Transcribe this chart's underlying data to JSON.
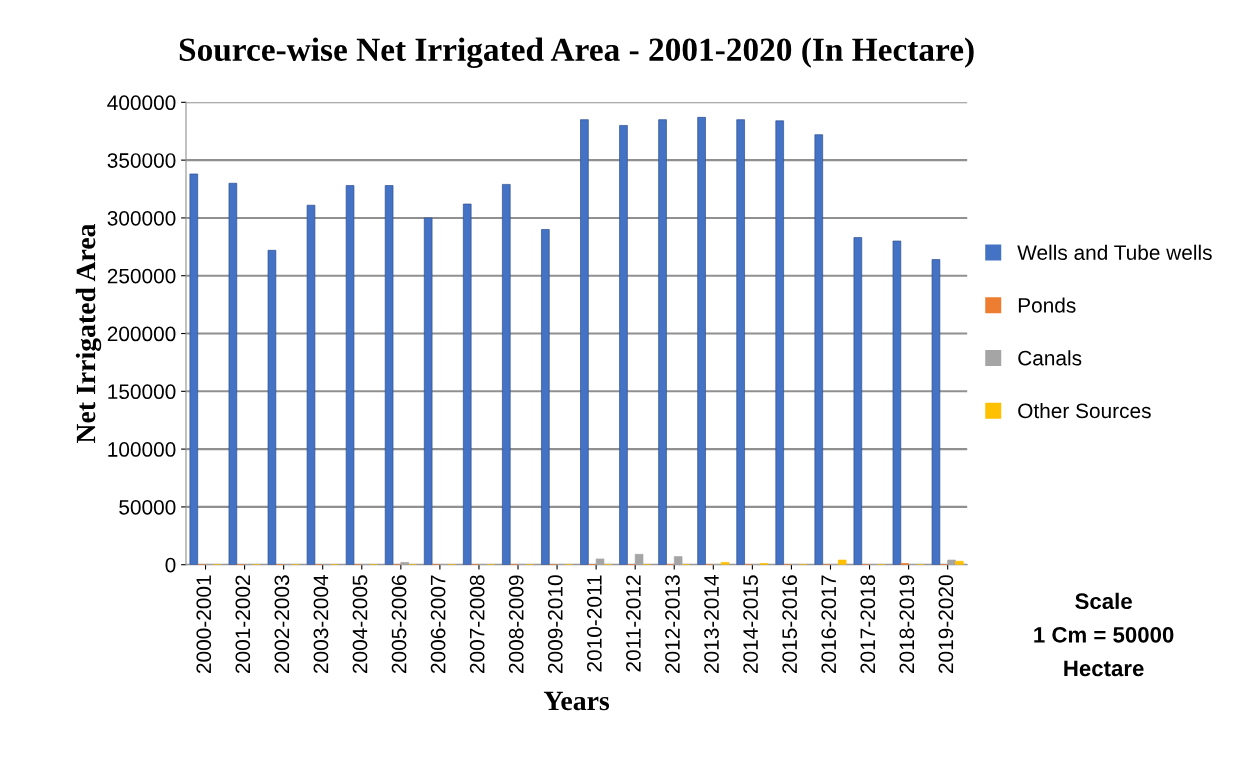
{
  "chart_data": {
    "type": "bar",
    "title": "Source-wise Net Irrigated Area - 2001-2020 (In Hectare)",
    "xlabel": "Years",
    "ylabel": "Net Irrigated Area",
    "categories": [
      "2000-2001",
      "2001-2002",
      "2002-2003",
      "2003-2004",
      "2004-2005",
      "2005-2006",
      "2006-2007",
      "2007-2008",
      "2008-2009",
      "2009-2010",
      "2010-2011",
      "2011-2012",
      "2012-2013",
      "2013-2014",
      "2014-2015",
      "2015-2016",
      "2016-2017",
      "2017-2018",
      "2018-2019",
      "2019-2020"
    ],
    "series": [
      {
        "name": "Wells and Tube wells",
        "color": "#4472c4",
        "values": [
          338000,
          330000,
          272000,
          311000,
          328000,
          328000,
          300000,
          312000,
          329000,
          290000,
          385000,
          380000,
          385000,
          387000,
          385000,
          384000,
          372000,
          283000,
          280000,
          264000
        ]
      },
      {
        "name": "Ponds",
        "color": "#ed7d31",
        "values": [
          0,
          0,
          0,
          0,
          0,
          0,
          0,
          0,
          0,
          0,
          0,
          0,
          0,
          0,
          0,
          0,
          0,
          0,
          1000,
          0
        ]
      },
      {
        "name": "Canals",
        "color": "#a5a5a5",
        "values": [
          0,
          0,
          0,
          0,
          0,
          2000,
          0,
          0,
          0,
          0,
          5000,
          9000,
          7000,
          0,
          0,
          0,
          0,
          0,
          0,
          4000
        ]
      },
      {
        "name": "Other Sources",
        "color": "#ffc000",
        "values": [
          0,
          0,
          0,
          0,
          0,
          0,
          0,
          0,
          0,
          0,
          0,
          0,
          0,
          2000,
          1000,
          0,
          4000,
          0,
          0,
          3000
        ]
      }
    ],
    "ylim": [
      0,
      400000
    ],
    "yticks": [
      0,
      50000,
      100000,
      150000,
      200000,
      250000,
      300000,
      350000,
      400000
    ],
    "grid": "y",
    "legend": "right",
    "annotations": [
      "Scale\n1 Cm = 50000\nHectare"
    ]
  }
}
